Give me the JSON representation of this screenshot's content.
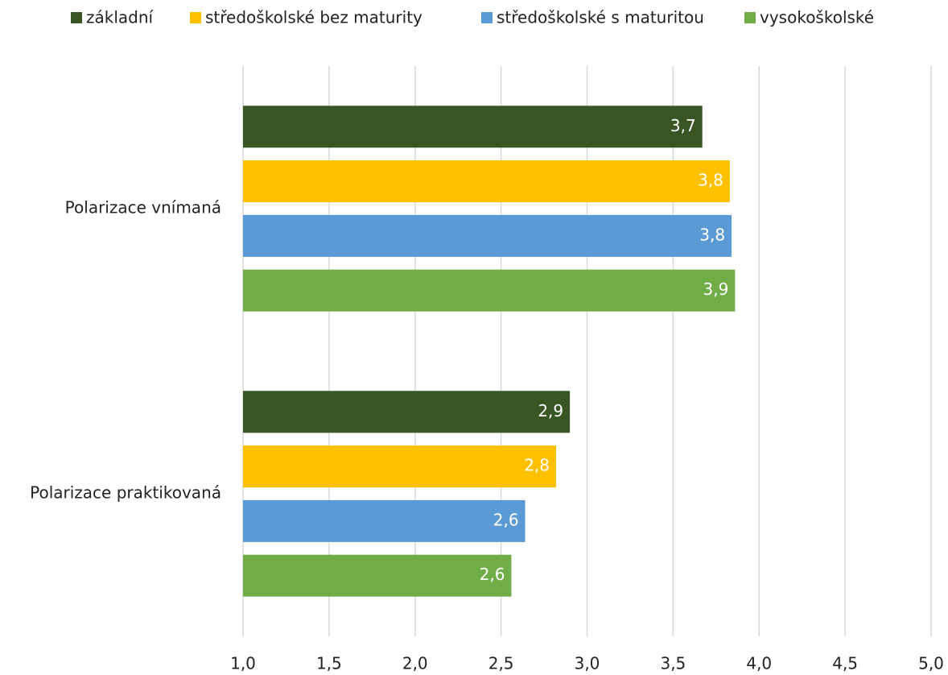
{
  "chart_data": {
    "type": "barh",
    "categories": [
      "Polarizace vnímaná",
      "Polarizace praktikovaná"
    ],
    "series": [
      {
        "name": "základní",
        "color": "#375623",
        "values": [
          3.67,
          2.9
        ],
        "value_labels": [
          "3,7",
          "2,9"
        ]
      },
      {
        "name": "středoškolské bez maturity",
        "color": "#ffc000",
        "values": [
          3.83,
          2.82
        ],
        "value_labels": [
          "3,8",
          "2,8"
        ]
      },
      {
        "name": "středoškolské s maturitou",
        "color": "#5b9bd5",
        "values": [
          3.84,
          2.64
        ],
        "value_labels": [
          "3,8",
          "2,6"
        ]
      },
      {
        "name": "vysokoškolské",
        "color": "#70ad47",
        "values": [
          3.86,
          2.56
        ],
        "value_labels": [
          "3,9",
          "2,6"
        ]
      }
    ],
    "xlim": [
      1,
      5
    ],
    "xticks": [
      {
        "value": 1,
        "label": "1,0"
      },
      {
        "value": 1.5,
        "label": "1,5"
      },
      {
        "value": 2,
        "label": "2,0"
      },
      {
        "value": 2.5,
        "label": "2,5"
      },
      {
        "value": 3,
        "label": "3,0"
      },
      {
        "value": 3.5,
        "label": "3,5"
      },
      {
        "value": 4,
        "label": "4,0"
      },
      {
        "value": 4.5,
        "label": "4,5"
      },
      {
        "value": 5,
        "label": "5,0"
      }
    ],
    "grid": true,
    "legend": "top"
  }
}
